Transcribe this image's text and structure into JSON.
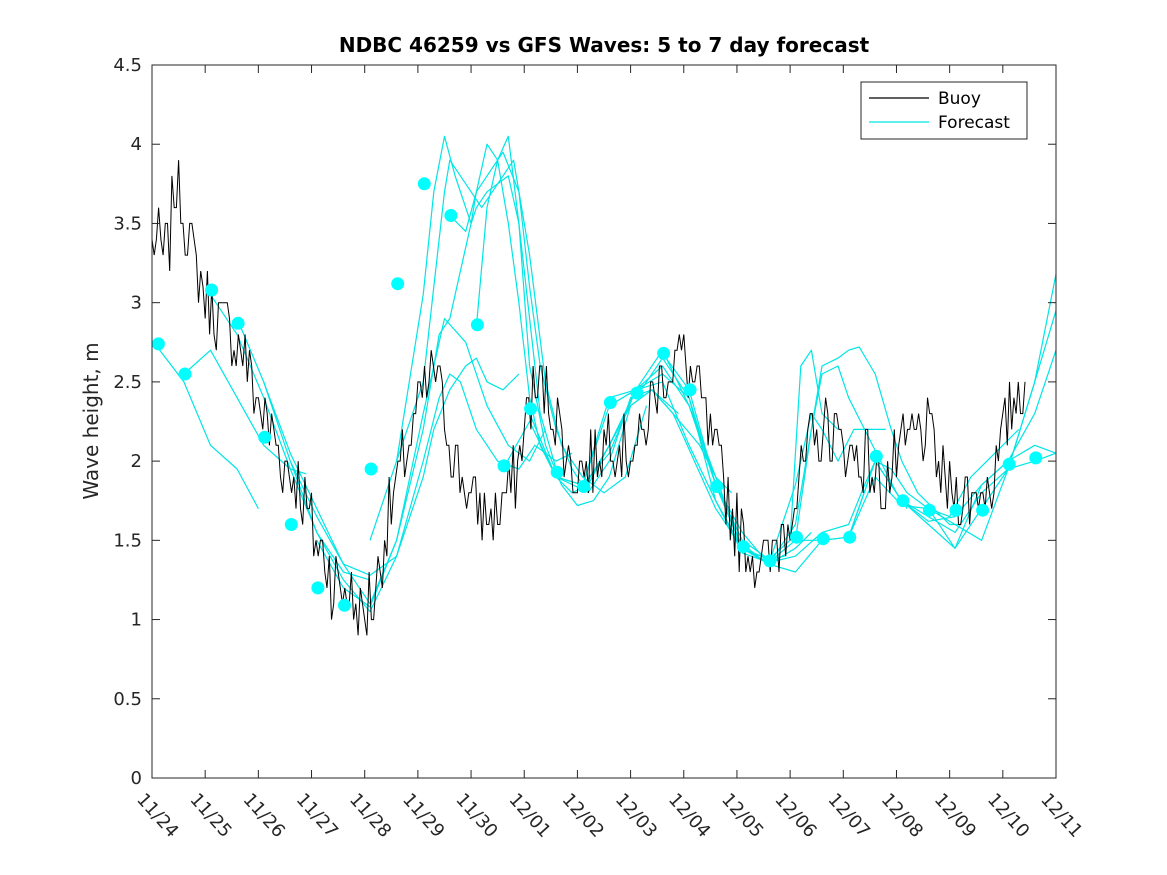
{
  "chart_data": {
    "type": "line",
    "title": "NDBC 46259 vs GFS Waves: 5 to 7 day forecast",
    "xlabel": "",
    "ylabel": "Wave height, m",
    "xlim": [
      0,
      17
    ],
    "ylim": [
      0,
      4.5
    ],
    "y_ticks": [
      0,
      0.5,
      1,
      1.5,
      2,
      2.5,
      3,
      3.5,
      4,
      4.5
    ],
    "y_tick_labels": [
      "0",
      "0.5",
      "1",
      "1.5",
      "2",
      "2.5",
      "3",
      "3.5",
      "4",
      "4.5"
    ],
    "x_tick_labels": [
      "11/24",
      "11/25",
      "11/26",
      "11/27",
      "11/28",
      "11/29",
      "11/30",
      "12/01",
      "12/02",
      "12/03",
      "12/04",
      "12/05",
      "12/06",
      "12/07",
      "12/08",
      "12/09",
      "12/10",
      "12/11"
    ],
    "legend": {
      "position": "top-right",
      "entries": [
        {
          "label": "Buoy",
          "color": "#000000"
        },
        {
          "label": "Forecast",
          "color": "#00e5e5"
        }
      ]
    },
    "colors": {
      "buoy": "#000000",
      "forecast": "#00ffff",
      "axis": "#262626"
    },
    "buoy_anchors": [
      [
        0.0,
        3.4
      ],
      [
        0.3,
        3.3
      ],
      [
        0.45,
        3.8
      ],
      [
        0.7,
        3.4
      ],
      [
        1.0,
        3.0
      ],
      [
        1.3,
        2.85
      ],
      [
        1.6,
        2.8
      ],
      [
        1.9,
        2.5
      ],
      [
        2.2,
        2.2
      ],
      [
        2.5,
        2.0
      ],
      [
        2.8,
        1.8
      ],
      [
        3.1,
        1.5
      ],
      [
        3.4,
        1.25
      ],
      [
        3.6,
        1.2
      ],
      [
        3.8,
        1.1
      ],
      [
        4.0,
        1.05
      ],
      [
        4.2,
        1.2
      ],
      [
        4.5,
        1.7
      ],
      [
        4.8,
        2.1
      ],
      [
        5.1,
        2.4
      ],
      [
        5.3,
        2.6
      ],
      [
        5.5,
        2.3
      ],
      [
        5.8,
        1.9
      ],
      [
        6.1,
        1.7
      ],
      [
        6.4,
        1.65
      ],
      [
        6.7,
        1.8
      ],
      [
        6.9,
        2.0
      ],
      [
        7.1,
        2.35
      ],
      [
        7.3,
        2.5
      ],
      [
        7.6,
        2.3
      ],
      [
        7.8,
        2.0
      ],
      [
        8.0,
        1.95
      ],
      [
        8.3,
        2.0
      ],
      [
        8.6,
        2.2
      ],
      [
        8.9,
        2.1
      ],
      [
        9.2,
        2.1
      ],
      [
        9.4,
        2.4
      ],
      [
        9.7,
        2.6
      ],
      [
        9.9,
        2.7
      ],
      [
        10.2,
        2.5
      ],
      [
        10.4,
        2.3
      ],
      [
        10.6,
        2.0
      ],
      [
        10.9,
        1.7
      ],
      [
        11.1,
        1.5
      ],
      [
        11.4,
        1.4
      ],
      [
        11.6,
        1.35
      ],
      [
        11.8,
        1.5
      ],
      [
        12.1,
        1.8
      ],
      [
        12.4,
        2.1
      ],
      [
        12.7,
        2.2
      ],
      [
        13.0,
        2.1
      ],
      [
        13.4,
        2.0
      ],
      [
        13.7,
        1.85
      ],
      [
        13.9,
        1.9
      ],
      [
        14.2,
        2.1
      ],
      [
        14.5,
        2.2
      ],
      [
        14.7,
        2.1
      ],
      [
        14.9,
        1.8
      ],
      [
        15.2,
        1.8
      ],
      [
        15.5,
        1.8
      ],
      [
        15.8,
        1.9
      ],
      [
        16.0,
        2.1
      ],
      [
        16.2,
        2.4
      ],
      [
        16.4,
        2.55
      ],
      [
        16.45,
        2.55
      ]
    ],
    "forecast_series": [
      {
        "name": "Forecast",
        "x": [
          0.1,
          0.6,
          1.1,
          1.6,
          2.0
        ],
        "y": [
          2.72,
          2.5,
          2.1,
          1.95,
          1.7
        ]
      },
      {
        "name": "Forecast",
        "x": [
          0.6,
          1.1,
          1.6,
          2.1,
          2.6,
          2.9
        ],
        "y": [
          2.55,
          2.7,
          2.4,
          2.1,
          1.95,
          1.92
        ]
      },
      {
        "name": "Forecast",
        "x": [
          1.1,
          1.6,
          2.1,
          2.6,
          3.1,
          3.6,
          4.1
        ],
        "y": [
          3.05,
          2.8,
          2.4,
          1.95,
          1.55,
          1.3,
          1.25
        ]
      },
      {
        "name": "Forecast",
        "x": [
          1.6,
          2.1,
          2.6,
          3.1,
          3.6,
          4.1,
          4.6,
          5.1,
          5.3,
          5.6,
          5.9,
          6.1,
          6.3,
          6.6,
          6.9
        ],
        "y": [
          2.9,
          2.5,
          2.0,
          1.65,
          1.35,
          1.28,
          1.4,
          1.9,
          2.2,
          2.45,
          2.6,
          2.65,
          2.5,
          2.45,
          2.55
        ]
      },
      {
        "name": "Forecast",
        "x": [
          2.1,
          2.6,
          3.1,
          3.6,
          4.1,
          4.6,
          5.1,
          5.5,
          5.9,
          6.3,
          6.7,
          7.1,
          7.4
        ],
        "y": [
          2.5,
          2.05,
          1.7,
          1.35,
          1.1,
          1.5,
          2.3,
          2.9,
          2.75,
          2.35,
          2.1,
          2.0,
          2.2
        ]
      },
      {
        "name": "Forecast",
        "x": [
          2.6,
          3.1,
          3.6,
          4.1,
          4.6,
          5.1,
          5.4,
          5.6,
          5.8,
          6.1,
          6.5,
          6.9,
          7.2,
          7.6,
          7.9
        ],
        "y": [
          2.0,
          1.55,
          1.25,
          1.05,
          1.4,
          2.0,
          2.4,
          2.55,
          2.5,
          2.2,
          2.0,
          1.95,
          2.1,
          2.0,
          2.05
        ]
      },
      {
        "name": "Forecast",
        "x": [
          3.1,
          3.6,
          4.1,
          4.6,
          5.1,
          5.4,
          5.6,
          5.8,
          6.0,
          6.1,
          6.3,
          6.5,
          6.7,
          6.9,
          7.1,
          7.3,
          7.6
        ],
        "y": [
          1.5,
          1.2,
          1.08,
          1.5,
          2.2,
          2.8,
          2.9,
          3.2,
          3.5,
          3.6,
          3.7,
          3.75,
          3.8,
          3.5,
          2.9,
          2.3,
          1.95
        ]
      },
      {
        "name": "Forecast",
        "x": [
          4.1,
          4.6,
          5.1,
          5.3,
          5.5,
          5.6,
          5.8,
          6.0,
          6.2,
          6.4,
          6.6,
          6.8,
          7.1,
          7.4,
          7.7,
          8.1,
          8.5,
          8.9,
          9.3
        ],
        "y": [
          1.5,
          2.0,
          2.5,
          3.1,
          3.7,
          3.9,
          3.8,
          3.7,
          3.6,
          3.7,
          3.8,
          3.9,
          3.3,
          2.5,
          2.1,
          1.9,
          1.8,
          1.9,
          2.35
        ]
      },
      {
        "name": "Forecast",
        "x": [
          4.6,
          5.1,
          5.3,
          5.5,
          5.7,
          5.9,
          6.0,
          6.1,
          6.3,
          6.5,
          6.7,
          6.9,
          7.1,
          7.3,
          7.6,
          7.9,
          8.2,
          8.6,
          9.0,
          9.4,
          9.9
        ],
        "y": [
          2.0,
          3.05,
          3.7,
          4.05,
          3.8,
          3.6,
          3.5,
          3.7,
          4.0,
          3.9,
          3.5,
          3.0,
          2.4,
          2.1,
          1.9,
          1.8,
          1.85,
          2.1,
          2.35,
          2.45,
          2.3
        ]
      },
      {
        "name": "Forecast",
        "x": [
          5.6,
          5.9,
          6.1,
          6.3,
          6.6,
          6.9,
          7.1,
          7.3,
          7.6,
          7.9,
          8.2,
          8.6,
          9.0,
          9.4,
          9.8,
          10.3,
          10.6,
          10.9
        ],
        "y": [
          3.55,
          3.45,
          3.7,
          3.8,
          3.95,
          3.7,
          3.1,
          2.6,
          2.2,
          1.95,
          1.8,
          2.0,
          2.4,
          2.45,
          2.3,
          2.1,
          1.9,
          1.8
        ]
      },
      {
        "name": "Forecast",
        "x": [
          6.1,
          6.3,
          6.5,
          6.7,
          6.9,
          7.1,
          7.4,
          7.7,
          8.0,
          8.3,
          8.6,
          9.0,
          9.4,
          9.8,
          10.2,
          10.6,
          11.0,
          11.4
        ],
        "y": [
          2.85,
          3.6,
          3.9,
          4.05,
          3.5,
          2.6,
          2.1,
          1.85,
          1.72,
          1.75,
          1.9,
          2.35,
          2.45,
          2.3,
          2.0,
          1.7,
          1.5,
          1.4
        ]
      },
      {
        "name": "Forecast",
        "x": [
          6.6,
          7.1,
          7.6,
          8.1,
          8.6,
          9.1,
          9.6,
          10.1,
          10.6,
          11.1,
          11.6,
          11.9
        ],
        "y": [
          1.95,
          2.25,
          1.9,
          1.82,
          2.1,
          2.45,
          2.5,
          2.1,
          1.75,
          1.45,
          1.38,
          1.4
        ]
      },
      {
        "name": "Forecast",
        "x": [
          7.1,
          7.6,
          8.1,
          8.6,
          9.1,
          9.6,
          10.1,
          10.6,
          11.1,
          11.6,
          12.1,
          12.4
        ],
        "y": [
          2.3,
          1.9,
          1.85,
          2.05,
          2.45,
          2.6,
          2.35,
          1.85,
          1.55,
          1.35,
          1.45,
          1.55
        ]
      },
      {
        "name": "Forecast",
        "x": [
          7.6,
          8.1,
          8.6,
          9.1,
          9.6,
          10.1,
          10.6,
          11.1,
          11.6,
          12.0,
          12.2,
          12.4,
          12.6,
          12.9
        ],
        "y": [
          1.9,
          1.85,
          2.4,
          2.45,
          2.55,
          2.4,
          1.85,
          1.5,
          1.38,
          1.5,
          2.6,
          2.7,
          2.3,
          2.2
        ]
      },
      {
        "name": "Forecast",
        "x": [
          8.1,
          8.6,
          9.1,
          9.6,
          10.1,
          10.6,
          11.1,
          11.6,
          12.1,
          12.4,
          12.6,
          12.9,
          13.2,
          13.6,
          13.8
        ],
        "y": [
          1.85,
          2.35,
          2.45,
          2.7,
          2.35,
          1.9,
          1.45,
          1.35,
          1.85,
          2.3,
          2.2,
          2.0,
          2.2,
          2.2,
          2.2
        ]
      },
      {
        "name": "Forecast",
        "x": [
          9.1,
          9.6,
          10.1,
          10.6,
          11.1,
          11.6,
          12.1,
          12.4,
          12.6,
          12.9,
          13.1,
          13.4,
          13.7,
          14.0,
          14.2
        ],
        "y": [
          2.4,
          2.65,
          2.4,
          1.75,
          1.42,
          1.36,
          1.5,
          2.2,
          2.55,
          2.6,
          2.4,
          2.2,
          2.0,
          1.8,
          1.7
        ]
      },
      {
        "name": "Forecast",
        "x": [
          9.6,
          10.1,
          10.6,
          11.1,
          11.6,
          12.1,
          12.6,
          12.9,
          13.1,
          13.3,
          13.6,
          13.9,
          14.1,
          14.4,
          14.7,
          15.0,
          15.2
        ],
        "y": [
          2.68,
          2.45,
          1.85,
          1.45,
          1.35,
          1.6,
          2.6,
          2.65,
          2.7,
          2.72,
          2.55,
          2.2,
          2.0,
          1.8,
          1.7,
          1.6,
          1.6
        ]
      },
      {
        "name": "Forecast",
        "x": [
          10.6,
          11.1,
          11.6,
          12.1,
          12.6,
          13.1,
          13.4,
          13.6,
          13.9,
          14.2,
          14.6,
          15.0,
          15.4,
          15.7,
          16.0,
          16.3
        ],
        "y": [
          1.85,
          1.45,
          1.36,
          1.4,
          1.55,
          1.6,
          1.85,
          2.0,
          1.95,
          1.8,
          1.7,
          1.65,
          1.9,
          2.0,
          2.1,
          2.2
        ]
      },
      {
        "name": "Forecast",
        "x": [
          11.6,
          12.1,
          12.6,
          13.1,
          13.6,
          14.1,
          14.6,
          15.1,
          15.6,
          16.1,
          16.6,
          17.0
        ],
        "y": [
          1.35,
          1.3,
          1.5,
          1.52,
          2.0,
          1.75,
          1.6,
          1.45,
          1.85,
          2.0,
          2.3,
          2.7
        ]
      },
      {
        "name": "Forecast",
        "x": [
          12.1,
          12.6,
          13.1,
          13.6,
          14.1,
          14.6,
          15.1,
          15.6,
          16.1,
          16.6,
          17.0
        ],
        "y": [
          1.5,
          1.5,
          1.52,
          1.9,
          1.72,
          1.7,
          1.45,
          1.7,
          1.95,
          2.5,
          2.95
        ]
      },
      {
        "name": "Forecast",
        "x": [
          13.1,
          13.6,
          14.1,
          14.6,
          15.1,
          15.6,
          16.1,
          16.6,
          17.0
        ],
        "y": [
          1.52,
          2.0,
          1.75,
          1.65,
          1.55,
          1.8,
          1.95,
          2.5,
          3.18
        ]
      },
      {
        "name": "Forecast",
        "x": [
          14.1,
          14.6,
          15.1,
          15.6,
          16.1,
          16.6,
          17.0
        ],
        "y": [
          1.75,
          1.62,
          1.65,
          1.85,
          2.0,
          2.1,
          2.05
        ]
      },
      {
        "name": "Forecast",
        "x": [
          14.6,
          15.1,
          15.6,
          16.1,
          16.6,
          17.0
        ],
        "y": [
          1.7,
          1.6,
          1.5,
          1.95,
          2.0,
          2.05
        ]
      }
    ],
    "forecast_points": {
      "x": [
        0.12,
        0.62,
        1.12,
        1.62,
        2.12,
        2.62,
        3.12,
        3.62,
        4.12,
        4.62,
        5.12,
        5.62,
        6.12,
        6.62,
        7.12,
        7.62,
        8.12,
        8.62,
        9.12,
        9.62,
        10.12,
        10.62,
        11.12,
        11.62,
        12.12,
        12.62,
        13.12,
        13.62,
        14.12,
        14.62,
        15.12,
        15.62,
        16.12,
        16.62
      ],
      "y": [
        2.74,
        2.55,
        3.08,
        2.87,
        2.15,
        1.6,
        1.2,
        1.09,
        1.95,
        3.12,
        3.75,
        3.55,
        2.86,
        1.97,
        2.33,
        1.93,
        1.84,
        2.37,
        2.43,
        2.68,
        2.45,
        1.84,
        1.46,
        1.37,
        1.52,
        1.51,
        1.52,
        2.03,
        1.75,
        1.69,
        1.69,
        1.69,
        1.98,
        2.02
      ]
    }
  }
}
